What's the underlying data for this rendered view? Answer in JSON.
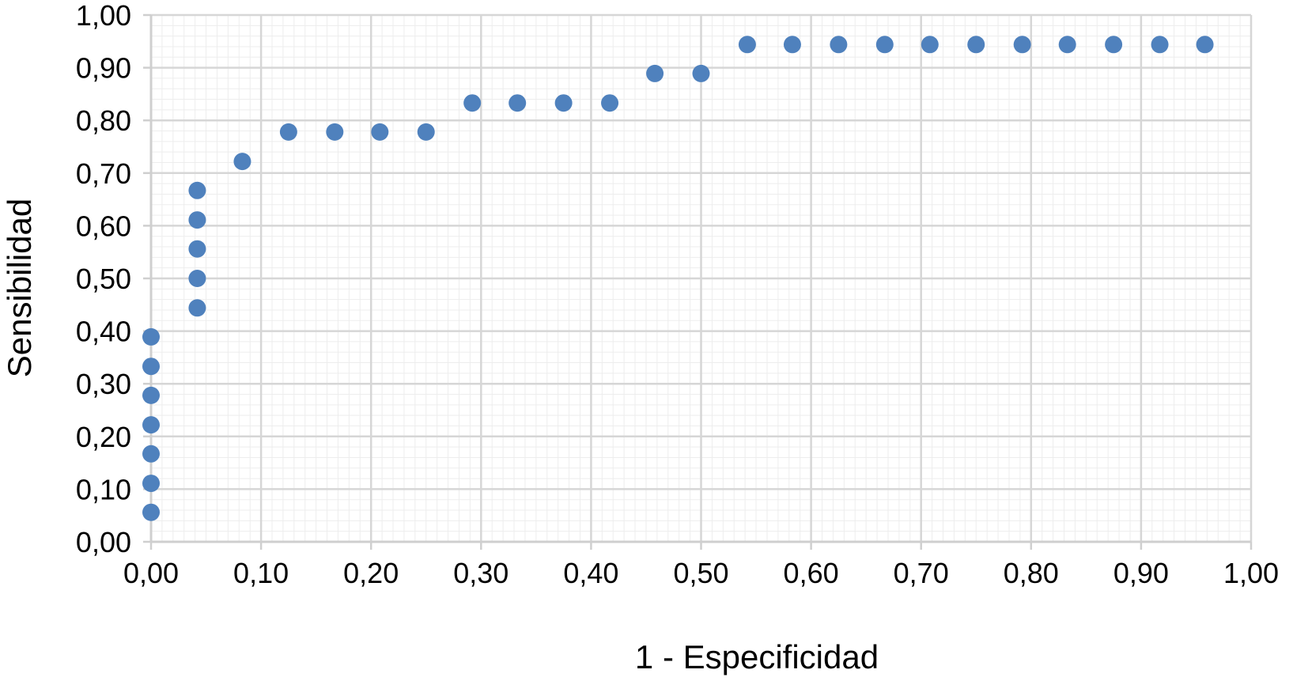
{
  "chart_data": {
    "type": "scatter",
    "title": "",
    "xlabel": "1 - Especificidad",
    "ylabel": "Sensibilidad",
    "xlim": [
      0,
      1
    ],
    "ylim": [
      0,
      1
    ],
    "x_ticks": [
      "0,00",
      "0,10",
      "0,20",
      "0,30",
      "0,40",
      "0,50",
      "0,60",
      "0,70",
      "0,80",
      "0,90",
      "1,00"
    ],
    "y_ticks": [
      "0,00",
      "0,10",
      "0,20",
      "0,30",
      "0,40",
      "0,50",
      "0,60",
      "0,70",
      "0,80",
      "0,90",
      "1,00"
    ],
    "grid": true,
    "legend": "none",
    "marker_color": "#4F81BD",
    "series": [
      {
        "points": [
          {
            "x": 0.0,
            "y": 0.056
          },
          {
            "x": 0.0,
            "y": 0.111
          },
          {
            "x": 0.0,
            "y": 0.167
          },
          {
            "x": 0.0,
            "y": 0.222
          },
          {
            "x": 0.0,
            "y": 0.278
          },
          {
            "x": 0.0,
            "y": 0.333
          },
          {
            "x": 0.0,
            "y": 0.389
          },
          {
            "x": 0.042,
            "y": 0.444
          },
          {
            "x": 0.042,
            "y": 0.5
          },
          {
            "x": 0.042,
            "y": 0.556
          },
          {
            "x": 0.042,
            "y": 0.611
          },
          {
            "x": 0.042,
            "y": 0.667
          },
          {
            "x": 0.083,
            "y": 0.722
          },
          {
            "x": 0.125,
            "y": 0.778
          },
          {
            "x": 0.167,
            "y": 0.778
          },
          {
            "x": 0.208,
            "y": 0.778
          },
          {
            "x": 0.25,
            "y": 0.778
          },
          {
            "x": 0.292,
            "y": 0.833
          },
          {
            "x": 0.333,
            "y": 0.833
          },
          {
            "x": 0.375,
            "y": 0.833
          },
          {
            "x": 0.417,
            "y": 0.833
          },
          {
            "x": 0.458,
            "y": 0.889
          },
          {
            "x": 0.5,
            "y": 0.889
          },
          {
            "x": 0.542,
            "y": 0.944
          },
          {
            "x": 0.583,
            "y": 0.944
          },
          {
            "x": 0.625,
            "y": 0.944
          },
          {
            "x": 0.667,
            "y": 0.944
          },
          {
            "x": 0.708,
            "y": 0.944
          },
          {
            "x": 0.75,
            "y": 0.944
          },
          {
            "x": 0.792,
            "y": 0.944
          },
          {
            "x": 0.833,
            "y": 0.944
          },
          {
            "x": 0.875,
            "y": 0.944
          },
          {
            "x": 0.917,
            "y": 0.944
          },
          {
            "x": 0.958,
            "y": 0.944
          }
        ]
      }
    ]
  }
}
